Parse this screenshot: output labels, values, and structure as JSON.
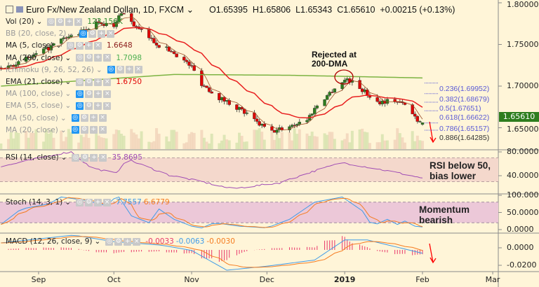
{
  "header": {
    "symbol": "Euro Fx/New Zealand Dollan, 1D, FXCM",
    "open": "O1.65395",
    "high": "H1.65806",
    "low": "L1.65343",
    "close": "C1.65610",
    "change": "+0.00215 (+0.13%)"
  },
  "indicators": [
    {
      "label": "Vol (20)",
      "value": "123.156K",
      "color": "#2e8b2e",
      "dim": false
    },
    {
      "label": "BB (20, close, 2)",
      "value": "",
      "color": "#999",
      "dim": true
    },
    {
      "label": "MA (5, close)",
      "value": "1.6648",
      "color": "#8b1a1a",
      "dim": false
    },
    {
      "label": "MA (200, close)",
      "value": "1.7098",
      "color": "#4caf50",
      "dim": false
    },
    {
      "label": "Ichimoku (9, 26, 52, 26)",
      "value": "",
      "color": "#999",
      "dim": true
    },
    {
      "label": "EMA (21, close)",
      "value": "1.6750",
      "color": "#e00000",
      "dim": false
    },
    {
      "label": "MA (100, close)",
      "value": "",
      "color": "#999",
      "dim": true
    },
    {
      "label": "EMA (55, close)",
      "value": "",
      "color": "#999",
      "dim": true
    },
    {
      "label": "MA (50, close)",
      "value": "",
      "color": "#999",
      "dim": true
    },
    {
      "label": "MA (20, close)",
      "value": "",
      "color": "#999",
      "dim": true
    }
  ],
  "rsi_legend": {
    "label": "RSI (14, close)",
    "value": "35.8695"
  },
  "stoch_legend": {
    "label": "Stoch (14, 3, 1)",
    "k": "7.7557",
    "d": "6.6779"
  },
  "macd_legend": {
    "label": "MACD (12, 26, close, 9)",
    "hist": "-0.0033",
    "macd": "-0.0063",
    "signal": "-0.0030"
  },
  "annotations": {
    "rejected": [
      "Rejected at",
      "200-DMA"
    ],
    "rsi": [
      "RSI below 50,",
      "bias lower"
    ],
    "momentum": [
      "Momentum",
      "bearish"
    ]
  },
  "last_price": "1.65610",
  "colors": {
    "up": "#2e7d1e",
    "down": "#e00000",
    "ema21": "#e82020",
    "ma5": "#a0522d",
    "ma200": "#7cb342",
    "rsi": "#a04cb4",
    "stoch_k": "#3f9be8",
    "stoch_d": "#f57c20",
    "macd": "#3f9be8",
    "signal": "#f57c20",
    "hist": "#e8386b",
    "fib": "#5b5bd6"
  },
  "chart_data": [
    {
      "type": "candlestick",
      "title": "Euro Fx/New Zealand Dollan, 1D, FXCM",
      "ylim": [
        1.625,
        1.8
      ],
      "yticks": [
        "1.80000",
        "1.75000",
        "1.70000",
        "1.65000"
      ],
      "xticks": [
        {
          "label": "Sep",
          "date": "2018-09-01",
          "bold": false
        },
        {
          "label": "Oct",
          "date": "2018-10-01",
          "bold": false
        },
        {
          "label": "Nov",
          "date": "2018-11-01",
          "bold": false
        },
        {
          "label": "Dec",
          "date": "2018-12-01",
          "bold": false
        },
        {
          "label": "2019",
          "date": "2019-01-01",
          "bold": true
        },
        {
          "label": "Feb",
          "date": "2019-02-01",
          "bold": false
        },
        {
          "label": "Mar",
          "date": "2019-03-01",
          "bold": false
        }
      ],
      "close_keypoints": [
        [
          "2018-08-17",
          1.722
        ],
        [
          "2018-08-24",
          1.728
        ],
        [
          "2018-09-03",
          1.742
        ],
        [
          "2018-09-10",
          1.755
        ],
        [
          "2018-09-18",
          1.765
        ],
        [
          "2018-09-25",
          1.778
        ],
        [
          "2018-10-01",
          1.77
        ],
        [
          "2018-10-04",
          1.79
        ],
        [
          "2018-10-10",
          1.77
        ],
        [
          "2018-10-19",
          1.749
        ],
        [
          "2018-10-25",
          1.74
        ],
        [
          "2018-11-01",
          1.723
        ],
        [
          "2018-11-05",
          1.703
        ],
        [
          "2018-11-12",
          1.686
        ],
        [
          "2018-11-20",
          1.673
        ],
        [
          "2018-11-27",
          1.656
        ],
        [
          "2018-12-03",
          1.645
        ],
        [
          "2018-12-10",
          1.652
        ],
        [
          "2018-12-17",
          1.66
        ],
        [
          "2018-12-21",
          1.677
        ],
        [
          "2018-12-28",
          1.698
        ],
        [
          "2019-01-02",
          1.709
        ],
        [
          "2019-01-07",
          1.698
        ],
        [
          "2019-01-14",
          1.681
        ],
        [
          "2019-01-21",
          1.683
        ],
        [
          "2019-01-25",
          1.677
        ],
        [
          "2019-01-30",
          1.66
        ],
        [
          "2019-02-01",
          1.6561
        ]
      ],
      "ma200_keypoints": [
        [
          "2018-08-17",
          1.7
        ],
        [
          "2018-10-25",
          1.714
        ],
        [
          "2018-12-10",
          1.713
        ],
        [
          "2019-02-01",
          1.7098
        ]
      ],
      "fibonacci": [
        {
          "label": "0.236(1.69952)",
          "price": 1.69952
        },
        {
          "label": "0.382(1.68679)",
          "price": 1.68679
        },
        {
          "label": "0.5(1.67651)",
          "price": 1.67651
        },
        {
          "label": "0.618(1.66622)",
          "price": 1.66622
        },
        {
          "label": "0.786(1.65157)",
          "price": 1.65157
        },
        {
          "label": "0.886(1.64285)",
          "price": 1.64285
        }
      ]
    },
    {
      "type": "line",
      "name": "RSI (14, close)",
      "ylim": [
        0,
        100
      ],
      "bands": [
        30,
        70
      ],
      "yticks": [
        "80.0000",
        "40.0000"
      ],
      "keypoints": [
        [
          "2018-08-17",
          55
        ],
        [
          "2018-09-08",
          76
        ],
        [
          "2018-09-14",
          80
        ],
        [
          "2018-09-22",
          53
        ],
        [
          "2018-10-02",
          44
        ],
        [
          "2018-10-06",
          68
        ],
        [
          "2018-10-23",
          41
        ],
        [
          "2018-11-05",
          30
        ],
        [
          "2018-11-17",
          18
        ],
        [
          "2018-12-06",
          28
        ],
        [
          "2018-12-20",
          48
        ],
        [
          "2018-12-31",
          62
        ],
        [
          "2019-01-12",
          53
        ],
        [
          "2019-01-22",
          45
        ],
        [
          "2019-02-01",
          36
        ]
      ]
    },
    {
      "type": "line",
      "name": "Stoch (14, 3, 1)",
      "ylim": [
        0,
        100
      ],
      "bands": [
        20,
        80
      ],
      "yticks": [
        "100.0000",
        "50.0000",
        "0.0000"
      ],
      "keypoints": [
        [
          "2018-08-17",
          15
        ],
        [
          "2018-08-25",
          60
        ],
        [
          "2018-09-05",
          75
        ],
        [
          "2018-09-10",
          95
        ],
        [
          "2018-09-20",
          85
        ],
        [
          "2018-09-28",
          70
        ],
        [
          "2018-10-01",
          90
        ],
        [
          "2018-10-03",
          95
        ],
        [
          "2018-10-08",
          40
        ],
        [
          "2018-10-15",
          20
        ],
        [
          "2018-10-19",
          60
        ],
        [
          "2018-10-25",
          30
        ],
        [
          "2018-11-01",
          10
        ],
        [
          "2018-11-05",
          5
        ],
        [
          "2018-11-10",
          20
        ],
        [
          "2018-11-20",
          10
        ],
        [
          "2018-12-01",
          5
        ],
        [
          "2018-12-10",
          30
        ],
        [
          "2018-12-20",
          80
        ],
        [
          "2018-12-31",
          95
        ],
        [
          "2019-01-08",
          55
        ],
        [
          "2019-01-12",
          10
        ],
        [
          "2019-01-18",
          30
        ],
        [
          "2019-01-22",
          15
        ],
        [
          "2019-01-25",
          25
        ],
        [
          "2019-01-29",
          10
        ],
        [
          "2019-02-01",
          7.7557
        ]
      ]
    },
    {
      "type": "line",
      "name": "MACD (12, 26, close, 9)",
      "ylim": [
        -0.03,
        0.017
      ],
      "yticks": [
        "0.0000",
        "-0.0200"
      ],
      "keypoints": [
        [
          "2018-08-17",
          0.0056
        ],
        [
          "2018-09-15",
          0.0145
        ],
        [
          "2018-10-01",
          0.007
        ],
        [
          "2018-10-20",
          0.003
        ],
        [
          "2018-11-01",
          -0.003
        ],
        [
          "2018-11-15",
          -0.0256
        ],
        [
          "2018-12-01",
          -0.021
        ],
        [
          "2018-12-20",
          -0.014
        ],
        [
          "2019-01-01",
          0.009
        ],
        [
          "2019-01-10",
          0.009
        ],
        [
          "2019-02-01",
          -0.0063
        ]
      ]
    }
  ]
}
